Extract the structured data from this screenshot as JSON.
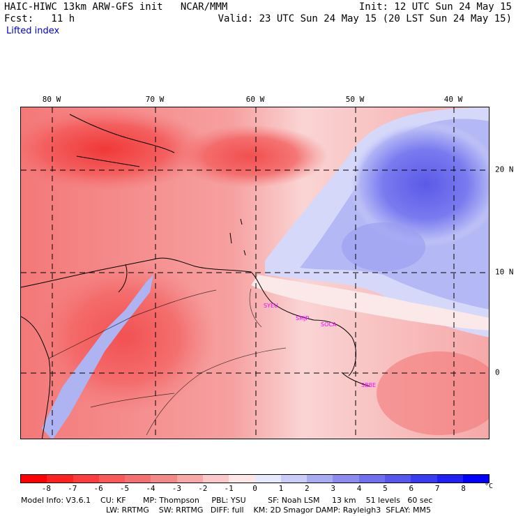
{
  "header": {
    "line1_left": "HAIC-HIWC 13km ARW-GFS init   NCAR/MMM",
    "line1_right": "Init: 12 UTC Sun 24 May 15",
    "line2_left": "Fcst:   11 h",
    "line2_right": "Valid: 23 UTC Sun 24 May 15 (20 LST Sun 24 May 15)",
    "field_name": "Lifted index"
  },
  "map": {
    "longitude_labels": [
      "80 W",
      "70 W",
      "60 W",
      "50 W",
      "40 W"
    ],
    "latitude_labels": [
      "20 N",
      "10 N",
      "0"
    ],
    "stations": [
      "SYEU",
      "SMJP",
      "SOCA",
      "SBBE"
    ],
    "colors": {
      "strong_negative": "#f03838",
      "moderate_negative": "#f47878",
      "weak_negative": "#fad0d0",
      "neutral": "#ffffff",
      "weak_positive": "#d0d4fa",
      "moderate_positive": "#8a8af0",
      "strong_positive": "#5a5ae8",
      "station_label": "#ff00ff",
      "title_blue": "#0000c8"
    }
  },
  "colorbar": {
    "ticks": [
      "-8",
      "-7",
      "-6",
      "-5",
      "-4",
      "-3",
      "-2",
      "-1",
      "0",
      "1",
      "2",
      "3",
      "4",
      "5",
      "6",
      "7",
      "8"
    ],
    "unit": "°C",
    "colors": [
      "#ff0000",
      "#ff2020",
      "#ff3c3c",
      "#f85858",
      "#f47070",
      "#f28888",
      "#f6a8a8",
      "#fac8c8",
      "#fde6e6",
      "#e6e8fc",
      "#c8ccf6",
      "#a8acf0",
      "#8c8cee",
      "#7070ee",
      "#5656ec",
      "#3a3af0",
      "#2020f4",
      "#0000ff"
    ]
  },
  "footer": {
    "line1": "Model Info: V3.6.1    CU: KF       MP: Thompson     PBL: YSU         SF: Noah LSM     13 km    51 levels   60 sec",
    "line2": "LW: RRTMG    SW: RRTMG   DIFF: full    KM: 2D Smagor DAMP: Rayleigh3  SFLAY: MM5"
  }
}
